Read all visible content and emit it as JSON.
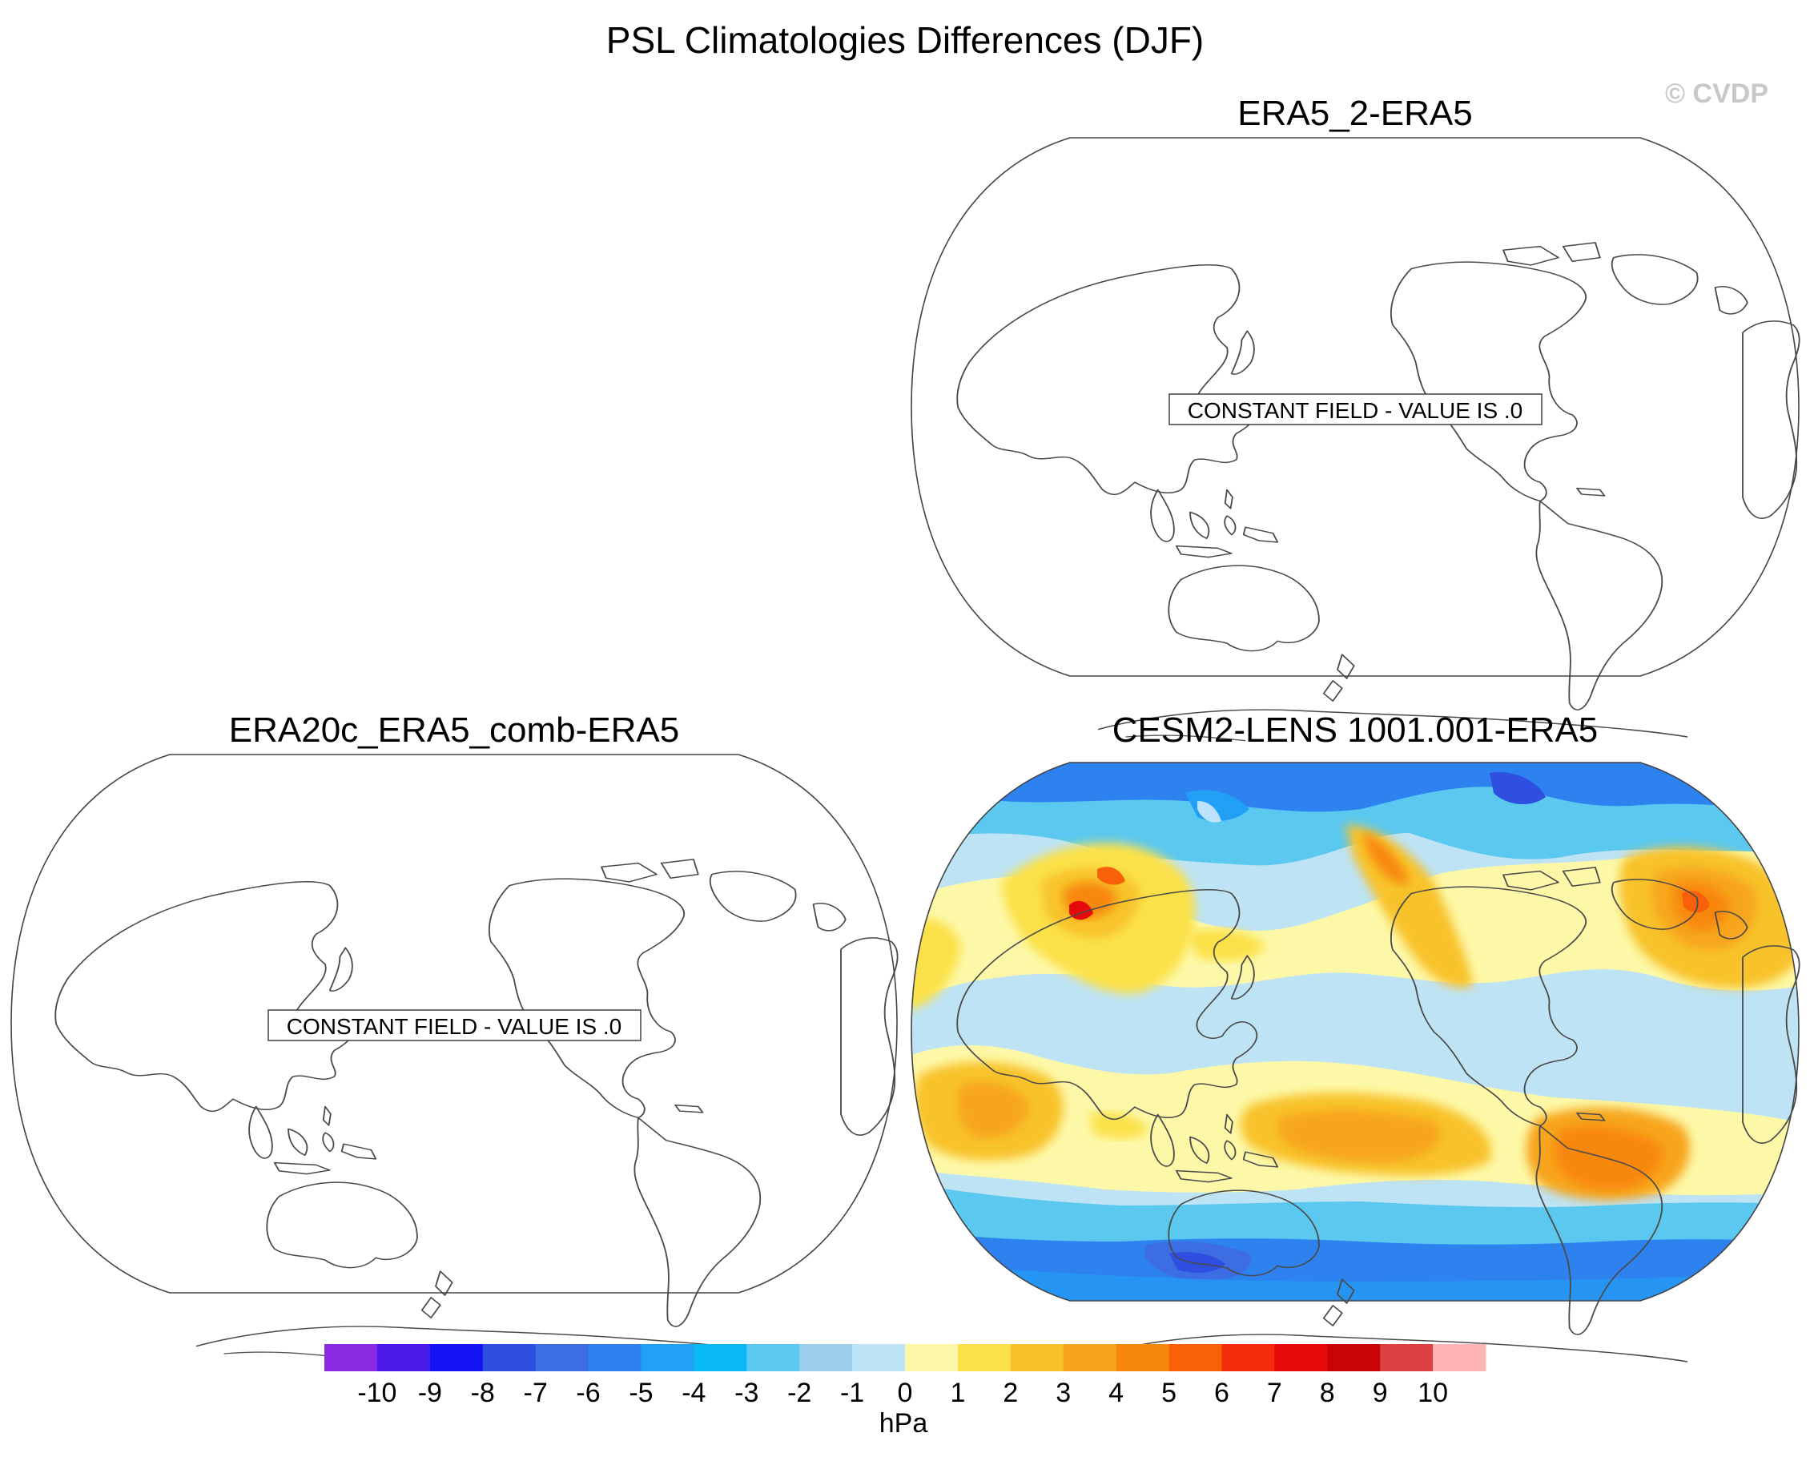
{
  "figure": {
    "title": "PSL Climatologies Differences (DJF)",
    "copyright": "© CVDP"
  },
  "panels": [
    {
      "id": "era5-2",
      "title": "ERA5_2-ERA5",
      "note": "CONSTANT FIELD - VALUE IS .0",
      "filled": false
    },
    {
      "id": "era20c",
      "title": "ERA20c_ERA5_comb-ERA5",
      "note": "CONSTANT FIELD - VALUE IS .0",
      "filled": false
    },
    {
      "id": "cesm2",
      "title": "CESM2-LENS 1001.001-ERA5",
      "note": "",
      "filled": true
    }
  ],
  "colorbar": {
    "unit": "hPa",
    "ticks": [
      "-10",
      "-9",
      "-8",
      "-7",
      "-6",
      "-5",
      "-4",
      "-3",
      "-2",
      "-1",
      "0",
      "1",
      "2",
      "3",
      "4",
      "5",
      "6",
      "7",
      "8",
      "9",
      "10"
    ],
    "colors": [
      "#8a2be2",
      "#4b1aeb",
      "#1414f5",
      "#2e4fe0",
      "#3d6de3",
      "#2d82f0",
      "#22a0f5",
      "#0ab8f5",
      "#5bc8f0",
      "#9ccfeb",
      "#bde3f5",
      "#fdf8a8",
      "#fbe14a",
      "#f8c229",
      "#f7a51c",
      "#f8870e",
      "#f8600a",
      "#f52c0a",
      "#e60a0a",
      "#c80404",
      "#dc4040",
      "#feb4b4"
    ]
  },
  "chart_data": {
    "type": "heatmap",
    "title": "PSL Climatologies Differences (DJF)",
    "variable": "PSL",
    "season": "DJF",
    "units": "hPa",
    "contour_levels": [
      -10,
      -9,
      -8,
      -7,
      -6,
      -5,
      -4,
      -3,
      -2,
      -1,
      0,
      1,
      2,
      3,
      4,
      5,
      6,
      7,
      8,
      9,
      10
    ],
    "panels": [
      {
        "title": "ERA5_2-ERA5",
        "constant_value": 0
      },
      {
        "title": "ERA20c_ERA5_comb-ERA5",
        "constant_value": 0
      },
      {
        "title": "CESM2-LENS 1001.001-ERA5",
        "constant_value": null
      }
    ]
  }
}
